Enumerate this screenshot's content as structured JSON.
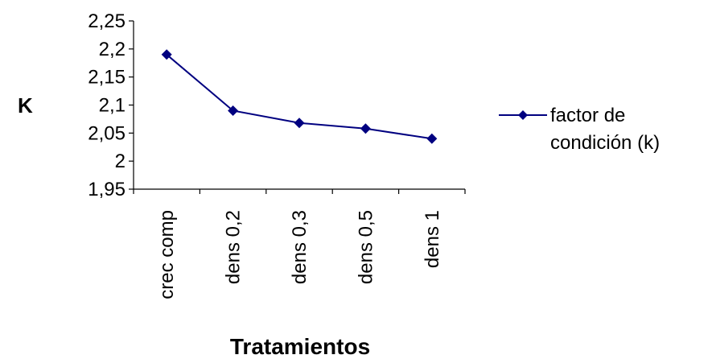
{
  "chart_data": {
    "type": "line",
    "title": "",
    "xlabel": "Tratamientos",
    "ylabel": "K",
    "categories": [
      "crec comp",
      "dens 0,2",
      "dens 0,3",
      "dens 0,5",
      "dens 1"
    ],
    "series": [
      {
        "name": "factor de condición (k)",
        "values": [
          2.19,
          2.09,
          2.068,
          2.058,
          2.04
        ],
        "color": "#000080",
        "marker": "diamond"
      }
    ],
    "ylim": [
      1.95,
      2.25
    ],
    "yticks": [
      "1,95",
      "2",
      "2,05",
      "2,1",
      "2,15",
      "2,2",
      "2,25"
    ],
    "grid": false,
    "legend": {
      "position": "right",
      "lines": [
        "factor de",
        "condición (k)"
      ]
    }
  }
}
